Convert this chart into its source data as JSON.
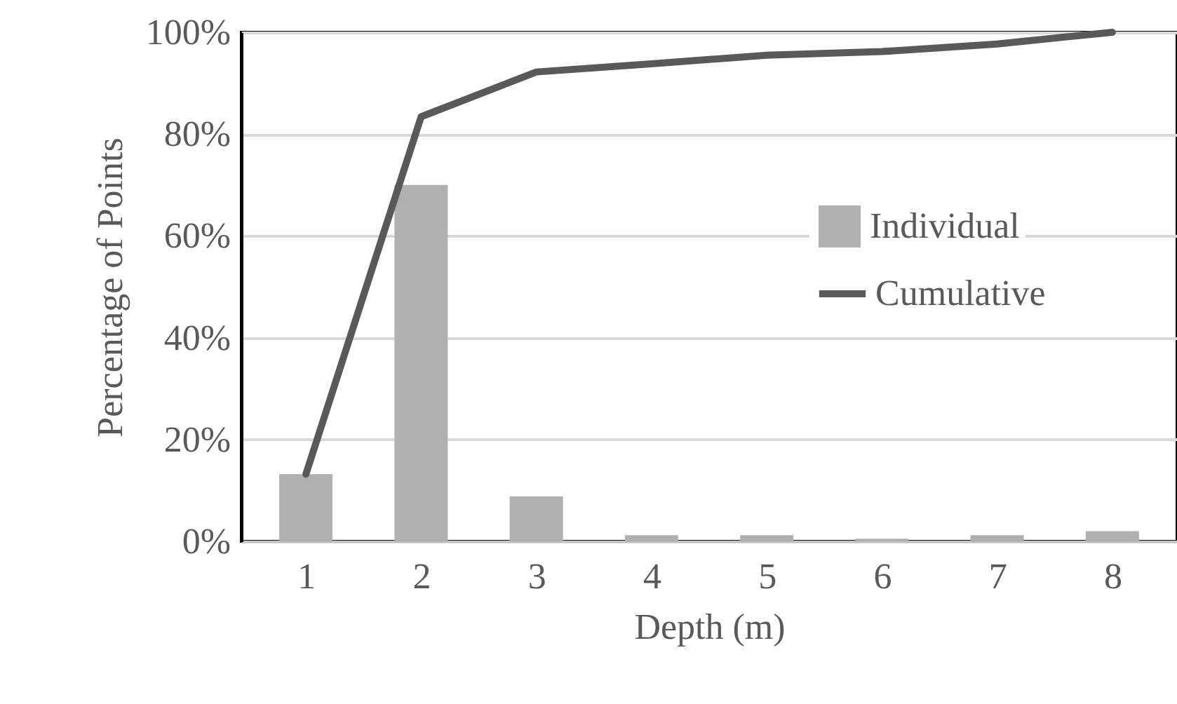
{
  "chart_data": {
    "type": "bar",
    "xlabel": "Depth (m)",
    "ylabel": "Percentage of Points",
    "categories": [
      "1",
      "2",
      "3",
      "4",
      "5",
      "6",
      "7",
      "8"
    ],
    "series": [
      {
        "name": "Individual",
        "color": "#b0b0b0",
        "values": [
          13.2,
          70,
          8.8,
          1.2,
          1.2,
          0.5,
          1.2,
          2
        ]
      },
      {
        "name": "Cumulative",
        "type": "line",
        "color": "#595959",
        "values": [
          13.2,
          83.4,
          92.2,
          93.8,
          95.5,
          96.2,
          97.7,
          100
        ]
      }
    ],
    "ylim": [
      0,
      100
    ],
    "yticks": [
      {
        "value": 0,
        "label": "0%"
      },
      {
        "value": 20,
        "label": "20%"
      },
      {
        "value": 40,
        "label": "40%"
      },
      {
        "value": 60,
        "label": "60%"
      },
      {
        "value": 80,
        "label": "80%"
      },
      {
        "value": 100,
        "label": "100%"
      }
    ],
    "grid": "y",
    "legend": "right",
    "line_style": "solid",
    "marker": "none"
  }
}
